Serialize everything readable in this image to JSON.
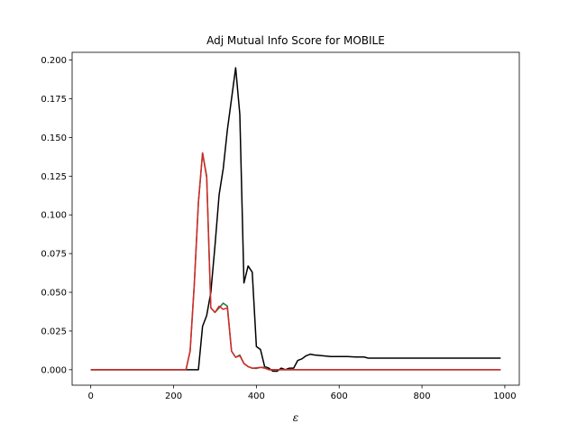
{
  "chart_data": {
    "type": "line",
    "title": "Adj Mutual Info Score for MOBILE",
    "xlabel": "ε",
    "ylabel": "",
    "xlim": [
      -45,
      1035
    ],
    "ylim": [
      -0.01,
      0.205
    ],
    "xticks": [
      0,
      200,
      400,
      600,
      800,
      1000
    ],
    "yticks": [
      0.0,
      0.025,
      0.05,
      0.075,
      0.1,
      0.125,
      0.15,
      0.175,
      0.2
    ],
    "ytick_labels": [
      "0.000",
      "0.025",
      "0.050",
      "0.075",
      "0.100",
      "0.125",
      "0.150",
      "0.175",
      "0.200"
    ],
    "grid": false,
    "legend": null,
    "series": [
      {
        "color": "#000000",
        "points": [
          [
            0,
            0
          ],
          [
            230,
            0
          ],
          [
            260,
            0
          ],
          [
            270,
            0.028
          ],
          [
            280,
            0.035
          ],
          [
            290,
            0.05
          ],
          [
            300,
            0.08
          ],
          [
            310,
            0.113
          ],
          [
            320,
            0.13
          ],
          [
            330,
            0.155
          ],
          [
            340,
            0.175
          ],
          [
            350,
            0.195
          ],
          [
            360,
            0.165
          ],
          [
            370,
            0.056
          ],
          [
            380,
            0.067
          ],
          [
            390,
            0.063
          ],
          [
            400,
            0.015
          ],
          [
            410,
            0.013
          ],
          [
            420,
            0.002
          ],
          [
            430,
            0.001
          ],
          [
            440,
            -0.001
          ],
          [
            450,
            -0.001
          ],
          [
            460,
            0.001
          ],
          [
            470,
            0
          ],
          [
            480,
            0.001
          ],
          [
            490,
            0.001
          ],
          [
            500,
            0.006
          ],
          [
            510,
            0.007
          ],
          [
            520,
            0.009
          ],
          [
            530,
            0.01
          ],
          [
            540,
            0.0095
          ],
          [
            560,
            0.009
          ],
          [
            580,
            0.0085
          ],
          [
            600,
            0.0085
          ],
          [
            620,
            0.0085
          ],
          [
            640,
            0.0082
          ],
          [
            660,
            0.0082
          ],
          [
            670,
            0.0075
          ],
          [
            700,
            0.0075
          ],
          [
            800,
            0.0075
          ],
          [
            900,
            0.0075
          ],
          [
            990,
            0.0075
          ]
        ]
      },
      {
        "color": "#1a7a3a",
        "points": [
          [
            0,
            0
          ],
          [
            230,
            0
          ],
          [
            240,
            0.012
          ],
          [
            250,
            0.055
          ],
          [
            260,
            0.108
          ],
          [
            270,
            0.14
          ],
          [
            280,
            0.125
          ],
          [
            290,
            0.04
          ],
          [
            300,
            0.037
          ],
          [
            310,
            0.04
          ],
          [
            320,
            0.043
          ],
          [
            330,
            0.041
          ],
          [
            340,
            0.012
          ],
          [
            350,
            0.008
          ],
          [
            360,
            0.0095
          ],
          [
            370,
            0.004
          ],
          [
            380,
            0.002
          ],
          [
            390,
            0.001
          ],
          [
            400,
            0.0008
          ],
          [
            410,
            0.0015
          ],
          [
            420,
            0.0015
          ],
          [
            430,
            0
          ],
          [
            440,
            0
          ],
          [
            460,
            0
          ],
          [
            480,
            0
          ],
          [
            500,
            0
          ],
          [
            600,
            0
          ],
          [
            700,
            0
          ],
          [
            800,
            0
          ],
          [
            900,
            0
          ],
          [
            990,
            0
          ]
        ]
      },
      {
        "color": "#d62728",
        "points": [
          [
            0,
            0
          ],
          [
            230,
            0
          ],
          [
            240,
            0.012
          ],
          [
            250,
            0.055
          ],
          [
            260,
            0.108
          ],
          [
            270,
            0.14
          ],
          [
            280,
            0.124
          ],
          [
            290,
            0.04
          ],
          [
            300,
            0.037
          ],
          [
            310,
            0.041
          ],
          [
            320,
            0.039
          ],
          [
            330,
            0.04
          ],
          [
            340,
            0.012
          ],
          [
            350,
            0.008
          ],
          [
            360,
            0.009
          ],
          [
            370,
            0.004
          ],
          [
            380,
            0.002
          ],
          [
            390,
            0.001
          ],
          [
            400,
            0.0012
          ],
          [
            410,
            0.0015
          ],
          [
            420,
            0.001
          ],
          [
            430,
            0
          ],
          [
            440,
            0
          ],
          [
            460,
            0
          ],
          [
            480,
            0
          ],
          [
            500,
            0
          ],
          [
            600,
            0
          ],
          [
            700,
            0
          ],
          [
            800,
            0
          ],
          [
            900,
            0
          ],
          [
            990,
            0
          ]
        ]
      }
    ]
  }
}
